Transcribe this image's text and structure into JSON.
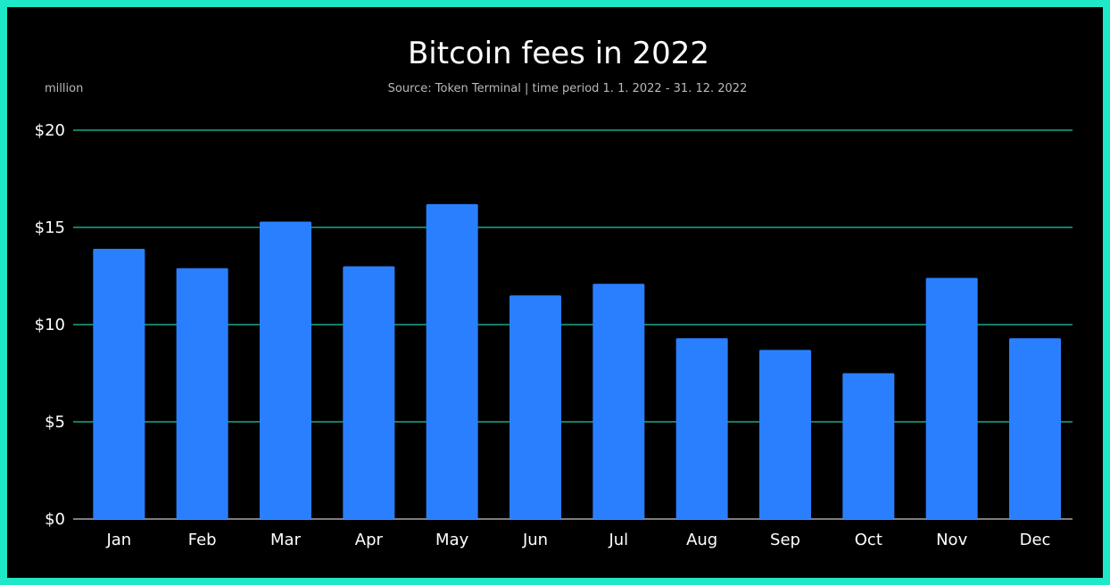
{
  "chart_data": {
    "type": "bar",
    "title": "Bitcoin fees in 2022",
    "subtitle": "Source: Token Terminal | time period 1. 1. 2022 - 31. 12. 2022",
    "unit_label": "million",
    "categories": [
      "Jan",
      "Feb",
      "Mar",
      "Apr",
      "May",
      "Jun",
      "Jul",
      "Aug",
      "Sep",
      "Oct",
      "Nov",
      "Dec"
    ],
    "values": [
      13.9,
      12.9,
      15.3,
      13.0,
      16.2,
      11.5,
      12.1,
      9.3,
      8.7,
      7.5,
      12.4,
      9.3
    ],
    "ylim": [
      0,
      20
    ],
    "yticks": [
      0,
      5,
      10,
      15,
      20
    ],
    "ytick_labels": [
      "$0",
      "$5",
      "$10",
      "$15",
      "$20"
    ],
    "grid": true,
    "colors": {
      "bar": "#2a7fff",
      "grid": "#1fc9a8",
      "baseline": "#c8c8c8",
      "background": "#000000",
      "frame": "#1fe8c8"
    }
  }
}
